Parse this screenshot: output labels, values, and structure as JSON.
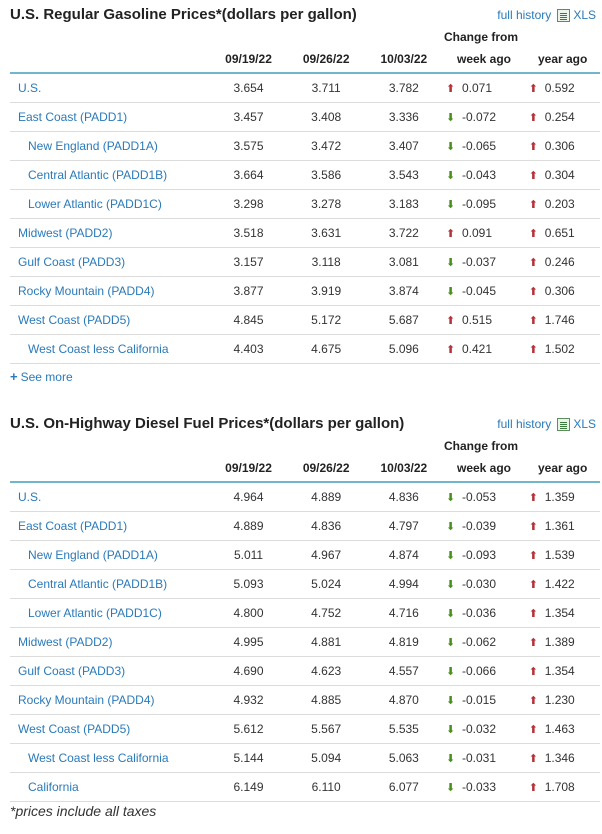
{
  "colors": {
    "link": "#2a7ab9",
    "up": "#b5323a",
    "down": "#4a8f1d",
    "header_rule": "#6fb7c9"
  },
  "gasoline": {
    "title": "U.S. Regular Gasoline Prices*(dollars per gallon)",
    "full_history": "full history",
    "xls": "XLS",
    "change_from": "Change from",
    "headers": [
      "09/19/22",
      "09/26/22",
      "10/03/22",
      "week ago",
      "year ago"
    ],
    "rows": [
      {
        "region": "U.S.",
        "indent": false,
        "v1": "3.654",
        "v2": "3.711",
        "v3": "3.782",
        "week": "0.071",
        "week_dir": "up",
        "year": "0.592",
        "year_dir": "up"
      },
      {
        "region": "East Coast (PADD1)",
        "indent": false,
        "v1": "3.457",
        "v2": "3.408",
        "v3": "3.336",
        "week": "-0.072",
        "week_dir": "down",
        "year": "0.254",
        "year_dir": "up"
      },
      {
        "region": "New England (PADD1A)",
        "indent": true,
        "v1": "3.575",
        "v2": "3.472",
        "v3": "3.407",
        "week": "-0.065",
        "week_dir": "down",
        "year": "0.306",
        "year_dir": "up"
      },
      {
        "region": "Central Atlantic (PADD1B)",
        "indent": true,
        "v1": "3.664",
        "v2": "3.586",
        "v3": "3.543",
        "week": "-0.043",
        "week_dir": "down",
        "year": "0.304",
        "year_dir": "up"
      },
      {
        "region": "Lower Atlantic (PADD1C)",
        "indent": true,
        "v1": "3.298",
        "v2": "3.278",
        "v3": "3.183",
        "week": "-0.095",
        "week_dir": "down",
        "year": "0.203",
        "year_dir": "up"
      },
      {
        "region": "Midwest (PADD2)",
        "indent": false,
        "v1": "3.518",
        "v2": "3.631",
        "v3": "3.722",
        "week": "0.091",
        "week_dir": "up",
        "year": "0.651",
        "year_dir": "up"
      },
      {
        "region": "Gulf Coast (PADD3)",
        "indent": false,
        "v1": "3.157",
        "v2": "3.118",
        "v3": "3.081",
        "week": "-0.037",
        "week_dir": "down",
        "year": "0.246",
        "year_dir": "up"
      },
      {
        "region": "Rocky Mountain (PADD4)",
        "indent": false,
        "v1": "3.877",
        "v2": "3.919",
        "v3": "3.874",
        "week": "-0.045",
        "week_dir": "down",
        "year": "0.306",
        "year_dir": "up"
      },
      {
        "region": "West Coast (PADD5)",
        "indent": false,
        "v1": "4.845",
        "v2": "5.172",
        "v3": "5.687",
        "week": "0.515",
        "week_dir": "up",
        "year": "1.746",
        "year_dir": "up"
      },
      {
        "region": "West Coast less California",
        "indent": true,
        "v1": "4.403",
        "v2": "4.675",
        "v3": "5.096",
        "week": "0.421",
        "week_dir": "up",
        "year": "1.502",
        "year_dir": "up"
      }
    ],
    "see_more": "See more"
  },
  "diesel": {
    "title": "U.S. On-Highway Diesel Fuel Prices*(dollars per gallon)",
    "full_history": "full history",
    "xls": "XLS",
    "change_from": "Change from",
    "headers": [
      "09/19/22",
      "09/26/22",
      "10/03/22",
      "week ago",
      "year ago"
    ],
    "rows": [
      {
        "region": "U.S.",
        "indent": false,
        "v1": "4.964",
        "v2": "4.889",
        "v3": "4.836",
        "week": "-0.053",
        "week_dir": "down",
        "year": "1.359",
        "year_dir": "up"
      },
      {
        "region": "East Coast (PADD1)",
        "indent": false,
        "v1": "4.889",
        "v2": "4.836",
        "v3": "4.797",
        "week": "-0.039",
        "week_dir": "down",
        "year": "1.361",
        "year_dir": "up"
      },
      {
        "region": "New England (PADD1A)",
        "indent": true,
        "v1": "5.011",
        "v2": "4.967",
        "v3": "4.874",
        "week": "-0.093",
        "week_dir": "down",
        "year": "1.539",
        "year_dir": "up"
      },
      {
        "region": "Central Atlantic (PADD1B)",
        "indent": true,
        "v1": "5.093",
        "v2": "5.024",
        "v3": "4.994",
        "week": "-0.030",
        "week_dir": "down",
        "year": "1.422",
        "year_dir": "up"
      },
      {
        "region": "Lower Atlantic (PADD1C)",
        "indent": true,
        "v1": "4.800",
        "v2": "4.752",
        "v3": "4.716",
        "week": "-0.036",
        "week_dir": "down",
        "year": "1.354",
        "year_dir": "up"
      },
      {
        "region": "Midwest (PADD2)",
        "indent": false,
        "v1": "4.995",
        "v2": "4.881",
        "v3": "4.819",
        "week": "-0.062",
        "week_dir": "down",
        "year": "1.389",
        "year_dir": "up"
      },
      {
        "region": "Gulf Coast (PADD3)",
        "indent": false,
        "v1": "4.690",
        "v2": "4.623",
        "v3": "4.557",
        "week": "-0.066",
        "week_dir": "down",
        "year": "1.354",
        "year_dir": "up"
      },
      {
        "region": "Rocky Mountain (PADD4)",
        "indent": false,
        "v1": "4.932",
        "v2": "4.885",
        "v3": "4.870",
        "week": "-0.015",
        "week_dir": "down",
        "year": "1.230",
        "year_dir": "up"
      },
      {
        "region": "West Coast (PADD5)",
        "indent": false,
        "v1": "5.612",
        "v2": "5.567",
        "v3": "5.535",
        "week": "-0.032",
        "week_dir": "down",
        "year": "1.463",
        "year_dir": "up"
      },
      {
        "region": "West Coast less California",
        "indent": true,
        "v1": "5.144",
        "v2": "5.094",
        "v3": "5.063",
        "week": "-0.031",
        "week_dir": "down",
        "year": "1.346",
        "year_dir": "up"
      },
      {
        "region": "California",
        "indent": true,
        "v1": "6.149",
        "v2": "6.110",
        "v3": "6.077",
        "week": "-0.033",
        "week_dir": "down",
        "year": "1.708",
        "year_dir": "up"
      }
    ]
  },
  "footnote": "*prices include all taxes"
}
